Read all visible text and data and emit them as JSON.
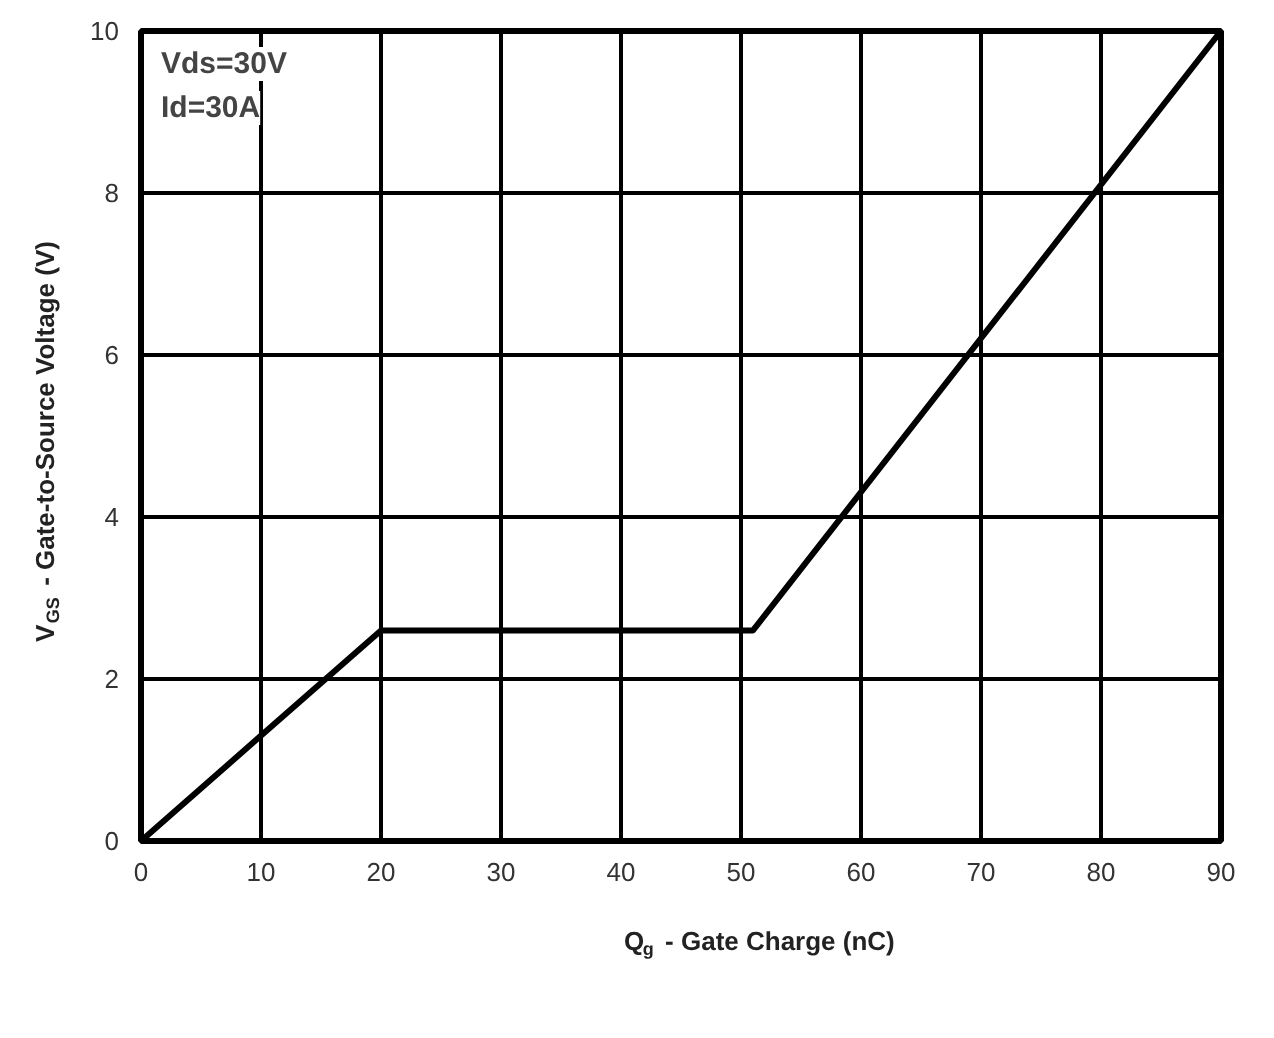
{
  "chart_data": {
    "type": "line",
    "xlabel": "Q$_{g}$ - Gate Charge (nC)",
    "ylabel": "V$_{GS}$ - Gate-to-Source Voltage (V)",
    "annotations": [
      "Vds=30V",
      "Id=30A"
    ],
    "x": [
      0,
      20,
      51,
      90
    ],
    "series": [
      {
        "color": "#000000",
        "values": [
          0,
          2.6,
          2.6,
          10
        ]
      }
    ],
    "xlim": [
      0,
      90
    ],
    "ylim": [
      0,
      10
    ],
    "xticks": [
      0,
      10,
      20,
      30,
      40,
      50,
      60,
      70,
      80,
      90
    ],
    "yticks": [
      0,
      2,
      4,
      6,
      8,
      10
    ],
    "grid": true,
    "marker": "none",
    "line_style": "solid"
  }
}
